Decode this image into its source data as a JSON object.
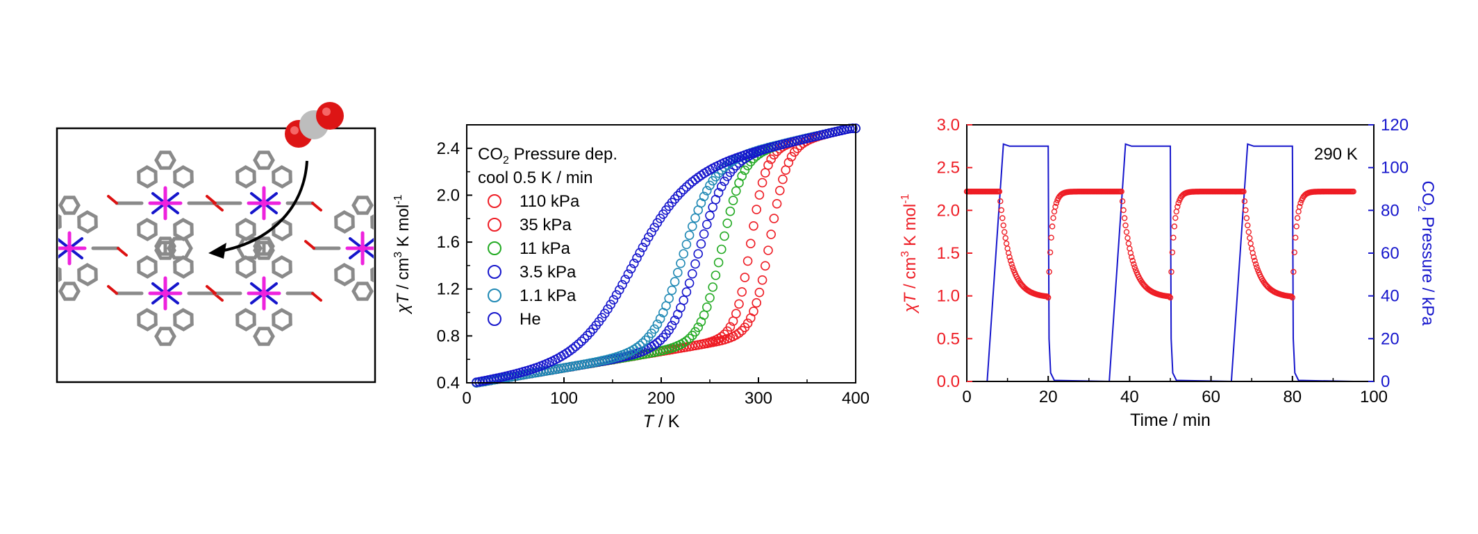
{
  "colors": {
    "red": "#ee1c24",
    "red_dark": "#dd1111",
    "green": "#22aa22",
    "blue": "#1515cc",
    "teal": "#1e88b4",
    "magenta": "#ee22dd",
    "grey": "#8a8a8a",
    "co2_red": "#dd1515",
    "co2_grey": "#bdbdbd"
  },
  "structure": {
    "icons": [
      "co2-molecule-icon",
      "curved-arrow-icon",
      "crystal-structure-icon"
    ]
  },
  "chart_data": [
    {
      "type": "scatter",
      "xlabel_italic": "T",
      "xlabel_rest": " / K",
      "ylabel_italic": "χT",
      "ylabel_rest": " / cm",
      "ylabel_sup3": "3",
      "ylabel_rest2": " K mol",
      "ylabel_sup_neg1": "-1",
      "xlim": [
        0,
        400
      ],
      "ylim": [
        0.4,
        2.6
      ],
      "xticks": [
        "0",
        "100",
        "200",
        "300",
        "400"
      ],
      "yticks": [
        "0.4",
        "0.8",
        "1.2",
        "1.6",
        "2.0",
        "2.4"
      ],
      "legend_title_a": "CO",
      "legend_title_sub": "2",
      "legend_title_b": " Pressure dep.",
      "legend_subtitle": "cool 0.5 K / min",
      "series": [
        {
          "name": "110 kPa",
          "color": "#ee1c24",
          "T_half": 312,
          "width": 20
        },
        {
          "name": "35 kPa",
          "color": "#ee1c24",
          "T_half": 292,
          "width": 18
        },
        {
          "name": "11 kPa",
          "color": "#22aa22",
          "T_half": 262,
          "width": 24
        },
        {
          "name": "3.5 kPa",
          "color": "#1515cc",
          "T_half": 238,
          "width": 32
        },
        {
          "name": "1.1 kPa",
          "color": "#1e88b4",
          "T_half": 222,
          "width": 34
        },
        {
          "name": "He",
          "color": "#1515cc",
          "T_half": 170,
          "width": 62
        }
      ]
    },
    {
      "type": "line",
      "xlabel": "Time / min",
      "annotation": "290 K",
      "xlim": [
        0,
        100
      ],
      "ylim_left": [
        0,
        3.0
      ],
      "ylim_right": [
        0,
        120
      ],
      "xticks": [
        "0",
        "20",
        "40",
        "60",
        "80",
        "100"
      ],
      "yticks_left": [
        "0.0",
        "0.5",
        "1.0",
        "1.5",
        "2.0",
        "2.5",
        "3.0"
      ],
      "yticks_right": [
        "0",
        "20",
        "40",
        "60",
        "80",
        "100",
        "120"
      ],
      "ylabel_left_italic": "χT",
      "ylabel_left_rest": " / cm",
      "ylabel_left_sup3": "3",
      "ylabel_left_rest2": " K mol",
      "ylabel_left_sup_neg1": "-1",
      "ylabel_right_a": "CO",
      "ylabel_right_sub": "2",
      "ylabel_right_b": " Pressure / kPa",
      "chiT_high": 2.22,
      "chiT_low": 0.98,
      "pressure_plateau": 110,
      "cycles": [
        {
          "co2_on": 5,
          "co2_off": 20
        },
        {
          "co2_on": 35,
          "co2_off": 50
        },
        {
          "co2_on": 65,
          "co2_off": 80
        }
      ],
      "end_time": 95
    }
  ]
}
